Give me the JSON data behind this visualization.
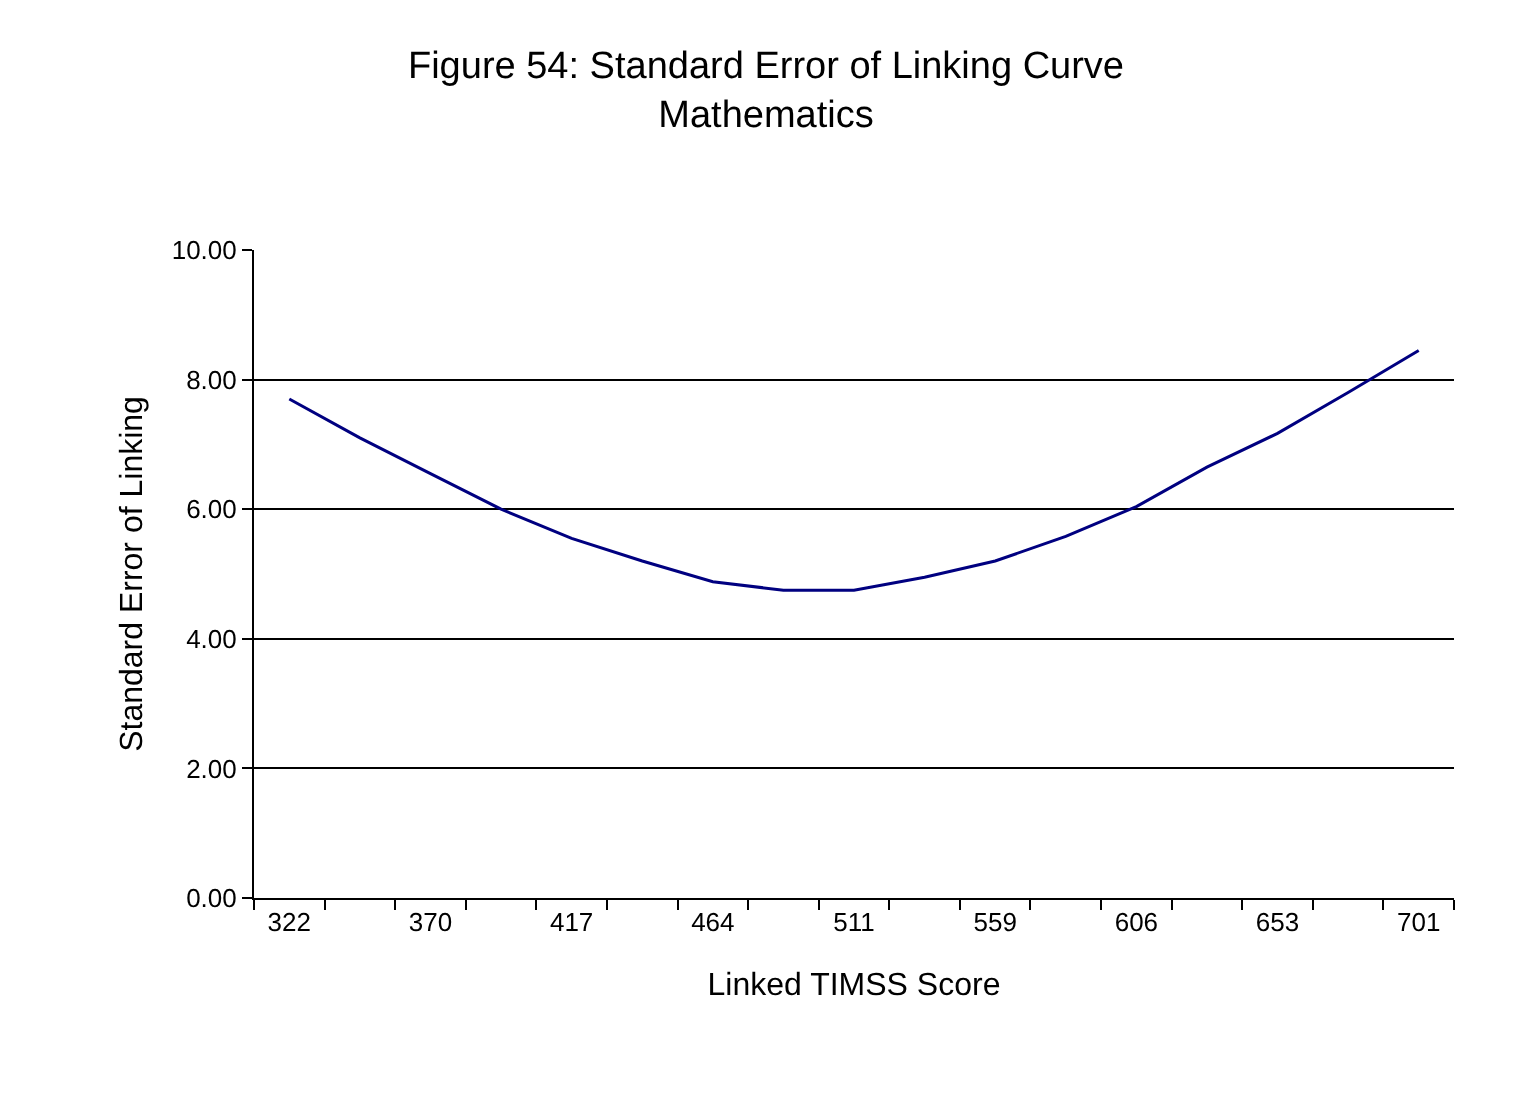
{
  "chart_data": {
    "type": "line",
    "title": "Figure 54: Standard Error of Linking Curve\nMathematics",
    "xlabel": "Linked TIMSS Score",
    "ylabel": "Standard Error of Linking",
    "categories": [
      "322",
      null,
      "370",
      null,
      "417",
      null,
      "464",
      null,
      "511",
      null,
      "559",
      null,
      "606",
      null,
      "653",
      null,
      "701"
    ],
    "series": [
      {
        "color": "#000080",
        "values": [
          7.7,
          7.1,
          6.55,
          6.0,
          5.55,
          5.2,
          4.88,
          4.75,
          4.75,
          4.95,
          5.2,
          5.58,
          6.04,
          6.65,
          7.17,
          7.8,
          8.45
        ]
      }
    ],
    "ylim": [
      0,
      10
    ],
    "yticks": [
      {
        "value": 0,
        "label": "0.00"
      },
      {
        "value": 2,
        "label": "2.00"
      },
      {
        "value": 4,
        "label": "4.00"
      },
      {
        "value": 6,
        "label": "6.00"
      },
      {
        "value": 8,
        "label": "8.00"
      },
      {
        "value": 10,
        "label": "10.00"
      }
    ],
    "grid": "y",
    "marker": "none",
    "line_style": "solid"
  }
}
